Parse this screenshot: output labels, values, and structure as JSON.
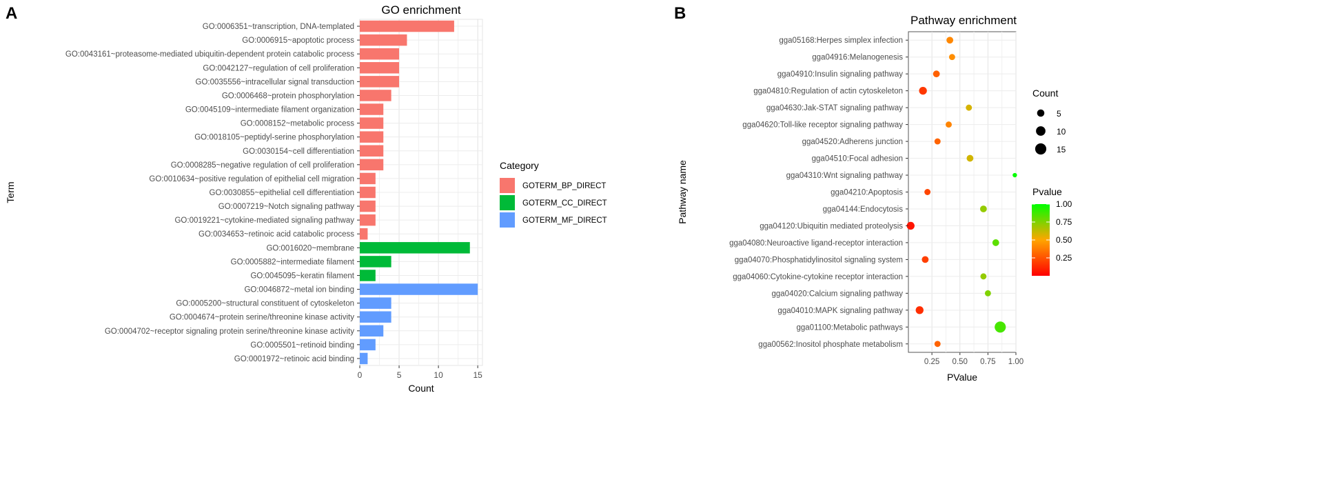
{
  "panels": {
    "a": "A",
    "b": "B"
  },
  "chart_data": [
    {
      "type": "bar",
      "orientation": "horizontal",
      "title": "GO enrichment",
      "xlabel": "Count",
      "ylabel": "Term",
      "xlim": [
        0,
        15.6
      ],
      "xticks": [
        0,
        5,
        10,
        15
      ],
      "grid": true,
      "legend": {
        "title": "Category",
        "position": "right",
        "entries": [
          {
            "key": "BP",
            "label": "GOTERM_BP_DIRECT",
            "color": "#F8766D"
          },
          {
            "key": "CC",
            "label": "GOTERM_CC_DIRECT",
            "color": "#00BA38"
          },
          {
            "key": "MF",
            "label": "GOTERM_MF_DIRECT",
            "color": "#619CFF"
          }
        ]
      },
      "bars": [
        {
          "term": "GO:0006351~transcription, DNA-templated",
          "count": 12,
          "category": "BP"
        },
        {
          "term": "GO:0006915~apoptotic process",
          "count": 6,
          "category": "BP"
        },
        {
          "term": "GO:0043161~proteasome-mediated ubiquitin-dependent protein catabolic process",
          "count": 5,
          "category": "BP"
        },
        {
          "term": "GO:0042127~regulation of cell proliferation",
          "count": 5,
          "category": "BP"
        },
        {
          "term": "GO:0035556~intracellular signal transduction",
          "count": 5,
          "category": "BP"
        },
        {
          "term": "GO:0006468~protein phosphorylation",
          "count": 4,
          "category": "BP"
        },
        {
          "term": "GO:0045109~intermediate filament organization",
          "count": 3,
          "category": "BP"
        },
        {
          "term": "GO:0008152~metabolic process",
          "count": 3,
          "category": "BP"
        },
        {
          "term": "GO:0018105~peptidyl-serine phosphorylation",
          "count": 3,
          "category": "BP"
        },
        {
          "term": "GO:0030154~cell differentiation",
          "count": 3,
          "category": "BP"
        },
        {
          "term": "GO:0008285~negative regulation of cell proliferation",
          "count": 3,
          "category": "BP"
        },
        {
          "term": "GO:0010634~positive regulation of epithelial cell migration",
          "count": 2,
          "category": "BP"
        },
        {
          "term": "GO:0030855~epithelial cell differentiation",
          "count": 2,
          "category": "BP"
        },
        {
          "term": "GO:0007219~Notch signaling pathway",
          "count": 2,
          "category": "BP"
        },
        {
          "term": "GO:0019221~cytokine-mediated signaling pathway",
          "count": 2,
          "category": "BP"
        },
        {
          "term": "GO:0034653~retinoic acid catabolic process",
          "count": 1,
          "category": "BP"
        },
        {
          "term": "GO:0016020~membrane",
          "count": 14,
          "category": "CC"
        },
        {
          "term": "GO:0005882~intermediate filament",
          "count": 4,
          "category": "CC"
        },
        {
          "term": "GO:0045095~keratin filament",
          "count": 2,
          "category": "CC"
        },
        {
          "term": "GO:0046872~metal ion binding",
          "count": 15,
          "category": "MF"
        },
        {
          "term": "GO:0005200~structural constituent of cytoskeleton",
          "count": 4,
          "category": "MF"
        },
        {
          "term": "GO:0004674~protein serine/threonine kinase activity",
          "count": 4,
          "category": "MF"
        },
        {
          "term": "GO:0004702~receptor signaling protein serine/threonine kinase activity",
          "count": 3,
          "category": "MF"
        },
        {
          "term": "GO:0005501~retinoid binding",
          "count": 2,
          "category": "MF"
        },
        {
          "term": "GO:0001972~retinoic acid binding",
          "count": 1,
          "category": "MF"
        }
      ]
    },
    {
      "type": "scatter",
      "title": "Pathway enrichment",
      "xlabel": "PValue",
      "ylabel": "Pathway name",
      "xlim": [
        0.04,
        1.0
      ],
      "xticks": [
        0.25,
        0.5,
        0.75,
        1.0
      ],
      "xtick_labels": [
        "0.25",
        "0.50",
        "0.75",
        "1.00"
      ],
      "grid": true,
      "size_legend": {
        "title": "Count",
        "values": [
          5,
          10,
          15
        ],
        "position": "right"
      },
      "color_legend": {
        "title": "Pvalue",
        "min": 0.0,
        "max": 1.0,
        "ticks": [
          "0.25",
          "0.50",
          "0.75",
          "1.00"
        ],
        "low_color": "#FF0000",
        "mid_color": "#FFA500",
        "high_color": "#00FF00",
        "position": "right"
      },
      "points": [
        {
          "pathway": "gga05168:Herpes simplex infection",
          "pvalue": 0.41,
          "count": 4
        },
        {
          "pathway": "gga04916:Melanogenesis",
          "pvalue": 0.43,
          "count": 3
        },
        {
          "pathway": "gga04910:Insulin signaling pathway",
          "pvalue": 0.29,
          "count": 4
        },
        {
          "pathway": "gga04810:Regulation of actin cytoskeleton",
          "pvalue": 0.17,
          "count": 6
        },
        {
          "pathway": "gga04630:Jak-STAT signaling pathway",
          "pvalue": 0.58,
          "count": 3
        },
        {
          "pathway": "gga04620:Toll-like receptor signaling pathway",
          "pvalue": 0.4,
          "count": 3
        },
        {
          "pathway": "gga04520:Adherens junction",
          "pvalue": 0.3,
          "count": 3
        },
        {
          "pathway": "gga04510:Focal adhesion",
          "pvalue": 0.59,
          "count": 4
        },
        {
          "pathway": "gga04310:Wnt signaling pathway",
          "pvalue": 0.99,
          "count": 1
        },
        {
          "pathway": "gga04210:Apoptosis",
          "pvalue": 0.21,
          "count": 3
        },
        {
          "pathway": "gga04144:Endocytosis",
          "pvalue": 0.71,
          "count": 4
        },
        {
          "pathway": "gga04120:Ubiquitin mediated proteolysis",
          "pvalue": 0.06,
          "count": 6
        },
        {
          "pathway": "gga04080:Neuroactive ligand-receptor interaction",
          "pvalue": 0.82,
          "count": 4
        },
        {
          "pathway": "gga04070:Phosphatidylinositol signaling system",
          "pvalue": 0.19,
          "count": 4
        },
        {
          "pathway": "gga04060:Cytokine-cytokine receptor interaction",
          "pvalue": 0.71,
          "count": 3
        },
        {
          "pathway": "gga04020:Calcium signaling pathway",
          "pvalue": 0.75,
          "count": 3
        },
        {
          "pathway": "gga04010:MAPK signaling pathway",
          "pvalue": 0.14,
          "count": 6
        },
        {
          "pathway": "gga01100:Metabolic pathways",
          "pvalue": 0.86,
          "count": 15
        },
        {
          "pathway": "gga00562:Inositol phosphate metabolism",
          "pvalue": 0.3,
          "count": 3
        }
      ]
    }
  ]
}
